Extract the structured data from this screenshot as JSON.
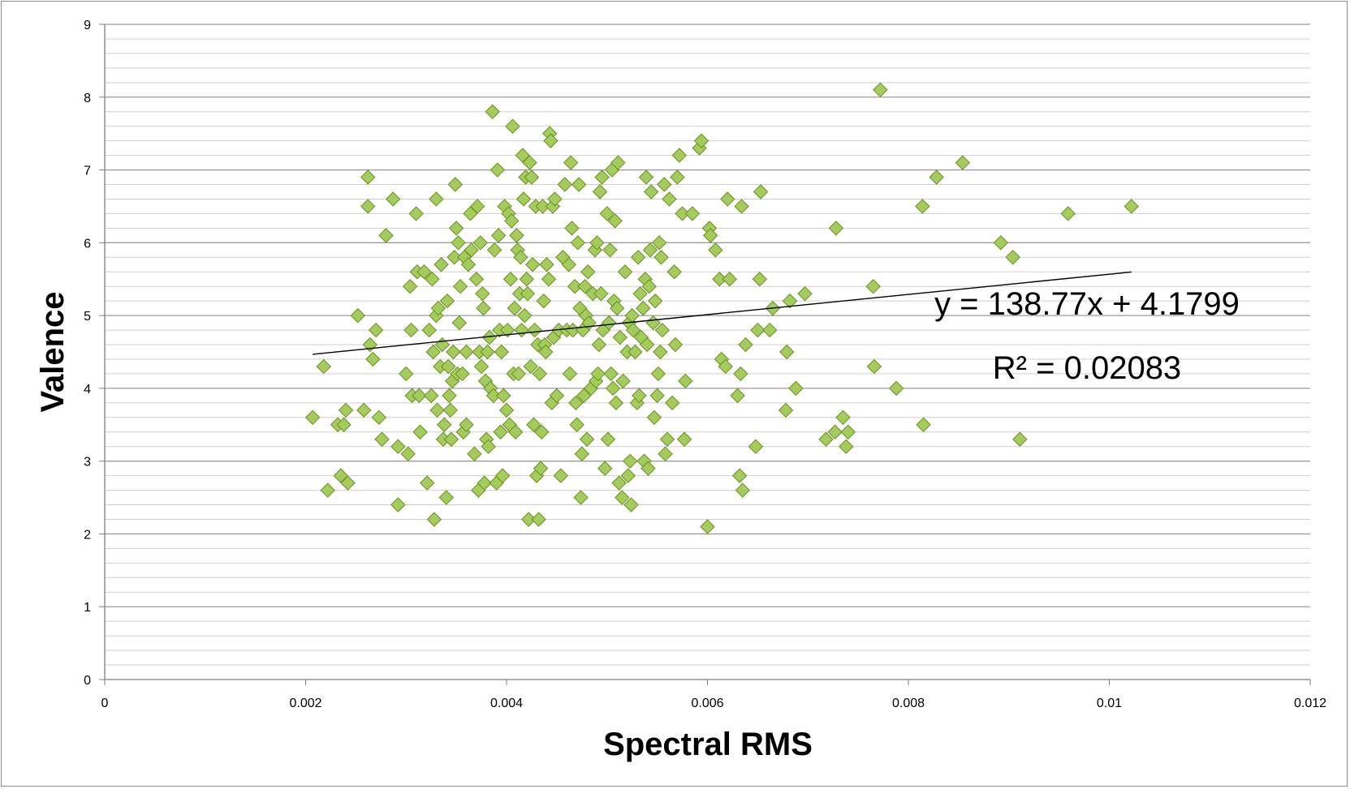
{
  "chart_data": {
    "type": "scatter",
    "title": "",
    "xlabel": "Spectral RMS",
    "ylabel": "Valence",
    "xlim": [
      0,
      0.012
    ],
    "ylim": [
      0,
      9
    ],
    "x_ticks": [
      {
        "value": 0,
        "label": "0"
      },
      {
        "value": 0.002,
        "label": "0.002"
      },
      {
        "value": 0.004,
        "label": "0.004"
      },
      {
        "value": 0.006,
        "label": "0.006"
      },
      {
        "value": 0.008,
        "label": "0.008"
      },
      {
        "value": 0.01,
        "label": "0.01"
      },
      {
        "value": 0.012,
        "label": "0.012"
      }
    ],
    "y_ticks": [
      {
        "value": 0,
        "label": "0"
      },
      {
        "value": 1,
        "label": "1"
      },
      {
        "value": 2,
        "label": "2"
      },
      {
        "value": 3,
        "label": "3"
      },
      {
        "value": 4,
        "label": "4"
      },
      {
        "value": 5,
        "label": "5"
      },
      {
        "value": 6,
        "label": "6"
      },
      {
        "value": 7,
        "label": "7"
      },
      {
        "value": 8,
        "label": "8"
      },
      {
        "value": 9,
        "label": "9"
      }
    ],
    "grid": {
      "major_y": true,
      "minor_y_step": 0.2
    },
    "legend": "none",
    "marker": {
      "shape": "diamond",
      "fill": "#a4cc5c",
      "stroke": "#6b8e23"
    },
    "trendline": {
      "type": "linear",
      "slope": 138.77,
      "intercept": 4.1799,
      "x_range": [
        0.00207,
        0.01022
      ],
      "color": "#000000",
      "equation_label": "y = 138.77x + 4.1799",
      "r2_label": "R² = 0.02083"
    },
    "series": [
      {
        "points": [
          [
            0.00207,
            3.6
          ],
          [
            0.00218,
            4.3
          ],
          [
            0.00222,
            2.6
          ],
          [
            0.00232,
            3.5
          ],
          [
            0.00235,
            2.8
          ],
          [
            0.00238,
            3.5
          ],
          [
            0.0024,
            3.7
          ],
          [
            0.00242,
            2.7
          ],
          [
            0.00252,
            5.0
          ],
          [
            0.00258,
            3.7
          ],
          [
            0.00262,
            6.9
          ],
          [
            0.00262,
            6.5
          ],
          [
            0.00264,
            4.6
          ],
          [
            0.00267,
            4.4
          ],
          [
            0.0027,
            4.8
          ],
          [
            0.00273,
            3.6
          ],
          [
            0.00276,
            3.3
          ],
          [
            0.0028,
            6.1
          ],
          [
            0.00287,
            6.6
          ],
          [
            0.00292,
            2.4
          ],
          [
            0.00292,
            3.2
          ],
          [
            0.003,
            4.2
          ],
          [
            0.00302,
            3.1
          ],
          [
            0.00304,
            5.4
          ],
          [
            0.00305,
            4.8
          ],
          [
            0.00306,
            3.9
          ],
          [
            0.0031,
            6.4
          ],
          [
            0.00311,
            5.6
          ],
          [
            0.00313,
            3.9
          ],
          [
            0.00314,
            3.4
          ],
          [
            0.00318,
            5.6
          ],
          [
            0.00321,
            2.7
          ],
          [
            0.00323,
            4.8
          ],
          [
            0.00325,
            3.9
          ],
          [
            0.00326,
            5.5
          ],
          [
            0.00327,
            4.5
          ],
          [
            0.00328,
            2.2
          ],
          [
            0.0033,
            6.6
          ],
          [
            0.0033,
            5.0
          ],
          [
            0.00331,
            3.7
          ],
          [
            0.00332,
            5.1
          ],
          [
            0.00334,
            4.3
          ],
          [
            0.00335,
            5.7
          ],
          [
            0.00336,
            4.6
          ],
          [
            0.00337,
            3.3
          ],
          [
            0.00338,
            3.5
          ],
          [
            0.0034,
            2.5
          ],
          [
            0.00341,
            5.2
          ],
          [
            0.00342,
            4.3
          ],
          [
            0.00343,
            3.9
          ],
          [
            0.00344,
            3.7
          ],
          [
            0.00345,
            3.3
          ],
          [
            0.00346,
            4.1
          ],
          [
            0.00347,
            4.5
          ],
          [
            0.00348,
            5.8
          ],
          [
            0.00349,
            6.8
          ],
          [
            0.0035,
            6.2
          ],
          [
            0.00351,
            4.2
          ],
          [
            0.00352,
            6.0
          ],
          [
            0.00353,
            4.9
          ],
          [
            0.00354,
            5.4
          ],
          [
            0.00356,
            4.2
          ],
          [
            0.00357,
            3.4
          ],
          [
            0.00358,
            5.8
          ],
          [
            0.0036,
            4.5
          ],
          [
            0.0036,
            3.5
          ],
          [
            0.00362,
            5.7
          ],
          [
            0.00364,
            6.4
          ],
          [
            0.00365,
            5.9
          ],
          [
            0.00368,
            3.1
          ],
          [
            0.0037,
            5.5
          ],
          [
            0.00371,
            6.5
          ],
          [
            0.00372,
            2.6
          ],
          [
            0.00373,
            4.5
          ],
          [
            0.00374,
            6.0
          ],
          [
            0.00375,
            4.3
          ],
          [
            0.00376,
            5.3
          ],
          [
            0.00377,
            5.1
          ],
          [
            0.00378,
            2.7
          ],
          [
            0.00379,
            4.1
          ],
          [
            0.0038,
            3.3
          ],
          [
            0.00381,
            4.5
          ],
          [
            0.00382,
            3.2
          ],
          [
            0.00383,
            4.7
          ],
          [
            0.00384,
            4.0
          ],
          [
            0.00386,
            7.8
          ],
          [
            0.00387,
            3.9
          ],
          [
            0.00388,
            5.9
          ],
          [
            0.0039,
            2.7
          ],
          [
            0.00391,
            7.0
          ],
          [
            0.00392,
            6.1
          ],
          [
            0.00393,
            4.8
          ],
          [
            0.00394,
            3.4
          ],
          [
            0.00395,
            4.5
          ],
          [
            0.00396,
            2.8
          ],
          [
            0.00397,
            3.9
          ],
          [
            0.00398,
            6.5
          ],
          [
            0.004,
            3.7
          ],
          [
            0.00401,
            4.8
          ],
          [
            0.00402,
            6.4
          ],
          [
            0.00403,
            3.5
          ],
          [
            0.00404,
            5.5
          ],
          [
            0.00405,
            6.3
          ],
          [
            0.00406,
            7.6
          ],
          [
            0.00407,
            4.2
          ],
          [
            0.00408,
            5.1
          ],
          [
            0.00409,
            3.4
          ],
          [
            0.0041,
            6.1
          ],
          [
            0.00411,
            5.9
          ],
          [
            0.00412,
            4.2
          ],
          [
            0.00413,
            5.3
          ],
          [
            0.00414,
            5.8
          ],
          [
            0.00415,
            4.8
          ],
          [
            0.00416,
            7.2
          ],
          [
            0.00417,
            6.6
          ],
          [
            0.00418,
            5.0
          ],
          [
            0.00419,
            6.9
          ],
          [
            0.0042,
            5.5
          ],
          [
            0.00421,
            5.3
          ],
          [
            0.00422,
            2.2
          ],
          [
            0.00423,
            7.1
          ],
          [
            0.00424,
            4.3
          ],
          [
            0.00425,
            6.9
          ],
          [
            0.00426,
            5.7
          ],
          [
            0.00427,
            3.5
          ],
          [
            0.00428,
            4.8
          ],
          [
            0.00429,
            6.5
          ],
          [
            0.0043,
            2.8
          ],
          [
            0.00431,
            4.6
          ],
          [
            0.00432,
            2.2
          ],
          [
            0.00433,
            4.2
          ],
          [
            0.00434,
            2.9
          ],
          [
            0.00435,
            3.4
          ],
          [
            0.00436,
            6.5
          ],
          [
            0.00437,
            5.2
          ],
          [
            0.00438,
            4.6
          ],
          [
            0.00439,
            4.5
          ],
          [
            0.0044,
            5.7
          ],
          [
            0.00442,
            5.5
          ],
          [
            0.00443,
            7.5
          ],
          [
            0.00444,
            7.4
          ],
          [
            0.00445,
            3.8
          ],
          [
            0.00446,
            6.5
          ],
          [
            0.00447,
            4.7
          ],
          [
            0.00448,
            6.6
          ],
          [
            0.0045,
            3.9
          ],
          [
            0.00452,
            4.8
          ],
          [
            0.00454,
            2.8
          ],
          [
            0.00456,
            5.8
          ],
          [
            0.00458,
            6.8
          ],
          [
            0.0046,
            4.8
          ],
          [
            0.00462,
            5.7
          ],
          [
            0.00463,
            4.2
          ],
          [
            0.00464,
            7.1
          ],
          [
            0.00465,
            6.2
          ],
          [
            0.00466,
            4.8
          ],
          [
            0.00468,
            5.4
          ],
          [
            0.00469,
            3.8
          ],
          [
            0.0047,
            3.5
          ],
          [
            0.00471,
            6.0
          ],
          [
            0.00472,
            6.8
          ],
          [
            0.00473,
            5.1
          ],
          [
            0.00474,
            2.5
          ],
          [
            0.00475,
            3.1
          ],
          [
            0.00476,
            4.8
          ],
          [
            0.00477,
            3.9
          ],
          [
            0.00478,
            5.4
          ],
          [
            0.00479,
            5.0
          ],
          [
            0.0048,
            3.3
          ],
          [
            0.00481,
            5.6
          ],
          [
            0.00482,
            4.9
          ],
          [
            0.00484,
            4.0
          ],
          [
            0.00486,
            5.3
          ],
          [
            0.00488,
            5.9
          ],
          [
            0.00489,
            4.1
          ],
          [
            0.0049,
            6.0
          ],
          [
            0.00491,
            4.2
          ],
          [
            0.00492,
            4.6
          ],
          [
            0.00493,
            6.7
          ],
          [
            0.00494,
            5.3
          ],
          [
            0.00495,
            6.9
          ],
          [
            0.00496,
            4.8
          ],
          [
            0.00498,
            2.9
          ],
          [
            0.005,
            6.4
          ],
          [
            0.00501,
            3.3
          ],
          [
            0.00502,
            4.9
          ],
          [
            0.00503,
            5.9
          ],
          [
            0.00504,
            4.2
          ],
          [
            0.00505,
            7.0
          ],
          [
            0.00506,
            4.0
          ],
          [
            0.00507,
            5.2
          ],
          [
            0.00508,
            6.3
          ],
          [
            0.00509,
            3.8
          ],
          [
            0.0051,
            5.1
          ],
          [
            0.00511,
            7.1
          ],
          [
            0.00512,
            2.7
          ],
          [
            0.00513,
            4.7
          ],
          [
            0.00515,
            2.5
          ],
          [
            0.00516,
            4.1
          ],
          [
            0.00518,
            5.6
          ],
          [
            0.0052,
            4.5
          ],
          [
            0.00521,
            2.8
          ],
          [
            0.00522,
            4.9
          ],
          [
            0.00523,
            3.0
          ],
          [
            0.00524,
            2.4
          ],
          [
            0.00525,
            5.0
          ],
          [
            0.00526,
            4.8
          ],
          [
            0.00528,
            4.5
          ],
          [
            0.0053,
            3.8
          ],
          [
            0.00531,
            5.8
          ],
          [
            0.00532,
            3.9
          ],
          [
            0.00533,
            5.3
          ],
          [
            0.00534,
            4.7
          ],
          [
            0.00536,
            5.1
          ],
          [
            0.00537,
            3.0
          ],
          [
            0.00538,
            5.5
          ],
          [
            0.00539,
            6.9
          ],
          [
            0.0054,
            4.6
          ],
          [
            0.00541,
            2.9
          ],
          [
            0.00542,
            5.4
          ],
          [
            0.00543,
            5.9
          ],
          [
            0.00544,
            6.7
          ],
          [
            0.00546,
            4.9
          ],
          [
            0.00547,
            3.6
          ],
          [
            0.00548,
            5.2
          ],
          [
            0.0055,
            3.9
          ],
          [
            0.00551,
            4.2
          ],
          [
            0.00552,
            6.0
          ],
          [
            0.00553,
            4.5
          ],
          [
            0.00554,
            5.8
          ],
          [
            0.00555,
            4.8
          ],
          [
            0.00557,
            6.8
          ],
          [
            0.00558,
            3.1
          ],
          [
            0.0056,
            3.3
          ],
          [
            0.00562,
            6.6
          ],
          [
            0.00565,
            3.8
          ],
          [
            0.00567,
            5.6
          ],
          [
            0.00568,
            4.6
          ],
          [
            0.0057,
            6.9
          ],
          [
            0.00572,
            7.2
          ],
          [
            0.00575,
            6.4
          ],
          [
            0.00578,
            4.1
          ],
          [
            0.00577,
            3.3
          ],
          [
            0.00585,
            6.4
          ],
          [
            0.00592,
            7.3
          ],
          [
            0.00594,
            7.4
          ],
          [
            0.006,
            2.1
          ],
          [
            0.00602,
            6.2
          ],
          [
            0.00603,
            6.1
          ],
          [
            0.00608,
            5.9
          ],
          [
            0.00612,
            5.5
          ],
          [
            0.00614,
            4.4
          ],
          [
            0.00618,
            4.3
          ],
          [
            0.0062,
            6.6
          ],
          [
            0.00622,
            5.5
          ],
          [
            0.0063,
            3.9
          ],
          [
            0.00632,
            2.8
          ],
          [
            0.00633,
            4.2
          ],
          [
            0.00634,
            6.5
          ],
          [
            0.00635,
            2.6
          ],
          [
            0.00638,
            4.6
          ],
          [
            0.00648,
            3.2
          ],
          [
            0.0065,
            4.8
          ],
          [
            0.00652,
            5.5
          ],
          [
            0.00653,
            6.7
          ],
          [
            0.00662,
            4.8
          ],
          [
            0.00665,
            5.1
          ],
          [
            0.00678,
            3.7
          ],
          [
            0.00679,
            4.5
          ],
          [
            0.00682,
            5.2
          ],
          [
            0.00688,
            4.0
          ],
          [
            0.00697,
            5.3
          ],
          [
            0.00718,
            3.3
          ],
          [
            0.00727,
            3.4
          ],
          [
            0.00728,
            6.2
          ],
          [
            0.00735,
            3.6
          ],
          [
            0.00738,
            3.2
          ],
          [
            0.0074,
            3.4
          ],
          [
            0.00765,
            5.4
          ],
          [
            0.00766,
            4.3
          ],
          [
            0.00772,
            8.1
          ],
          [
            0.00788,
            4.0
          ],
          [
            0.00814,
            6.5
          ],
          [
            0.00815,
            3.5
          ],
          [
            0.00828,
            6.9
          ],
          [
            0.00854,
            7.1
          ],
          [
            0.00892,
            6.0
          ],
          [
            0.00904,
            5.8
          ],
          [
            0.00911,
            3.3
          ],
          [
            0.00959,
            6.4
          ],
          [
            0.01022,
            6.5
          ]
        ]
      }
    ]
  }
}
